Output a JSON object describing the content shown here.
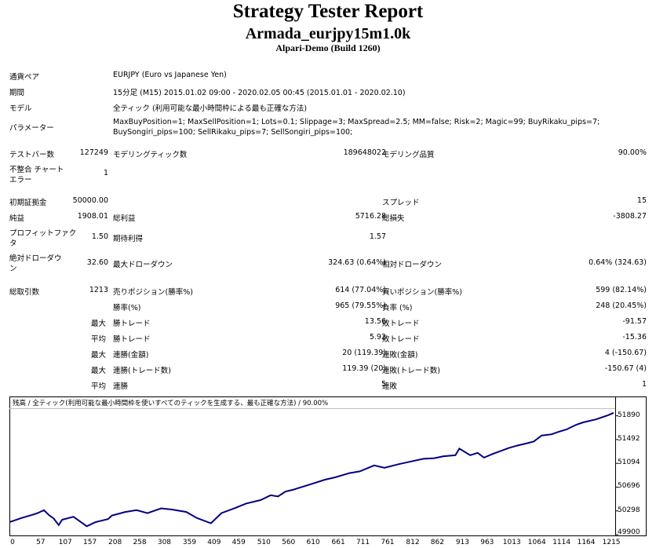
{
  "header": {
    "title": "Strategy Tester Report",
    "ea_name": "Armada_eurjpy15m1.0k",
    "server": "Alpari-Demo (Build 1260)"
  },
  "info": {
    "symbol_label": "通貨ペア",
    "symbol_value": "EURJPY (Euro vs Japanese Yen)",
    "period_label": "期間",
    "period_value": "15分足 (M15) 2015.01.02 09:00 - 2020.02.05 00:45 (2015.01.01 - 2020.02.10)",
    "model_label": "モデル",
    "model_value": "全ティック (利用可能な最小時間枠による最も正確な方法)",
    "params_label": "パラメーター",
    "params_line1": "MaxBuyPosition=1; MaxSellPosition=1; Lots=0.1; Slippage=3; MaxSpread=2.5; MM=false; Risk=2; Magic=99; BuyRikaku_pips=7;",
    "params_line2": "BuySongiri_pips=100; SellRikaku_pips=7; SellSongiri_pips=100;"
  },
  "stats": {
    "bars_label": "テストバー数",
    "bars_value": "127249",
    "ticks_label": "モデリングティック数",
    "ticks_value": "189648022",
    "quality_label": "モデリング品質",
    "quality_value": "90.00%",
    "mismatch_label_1": "不整合 チャート",
    "mismatch_label_2": "エラー",
    "mismatch_value": "1",
    "deposit_label": "初期証拠金",
    "deposit_value": "50000.00",
    "spread_label": "スプレッド",
    "spread_value": "15",
    "net_label": "純益",
    "net_value": "1908.01",
    "gross_profit_label": "総利益",
    "gross_profit_value": "5716.28",
    "gross_loss_label": "総損失",
    "gross_loss_value": "-3808.27",
    "pf_label_1": "プロフィットファク",
    "pf_label_2": "タ",
    "pf_value": "1.50",
    "expected_label": "期待利得",
    "expected_value": "1.57",
    "abs_dd_label_1": "絶対ドローダウ",
    "abs_dd_label_2": "ン",
    "abs_dd_value": "32.60",
    "max_dd_label": "最大ドローダウン",
    "max_dd_value": "324.63 (0.64%)",
    "rel_dd_label": "相対ドローダウン",
    "rel_dd_value": "0.64% (324.63)",
    "trades_label": "総取引数",
    "trades_value": "1213",
    "short_label": "売りポジション(勝率%)",
    "short_value": "614 (77.04%)",
    "long_label": "買いポジション(勝率%)",
    "long_value": "599 (82.14%)",
    "win_pct_label": "勝率(%)",
    "win_pct_value": "965 (79.55%)",
    "loss_pct_label": "負率 (%)",
    "loss_pct_value": "248 (20.45%)",
    "max_label": "最大",
    "avg_label": "平均",
    "largest_win_label": "勝トレード",
    "largest_win_value": "13.56",
    "largest_loss_label": "敗トレード",
    "largest_loss_value": "-91.57",
    "avg_win_label": "勝トレード",
    "avg_win_value": "5.92",
    "avg_loss_label": "敗トレード",
    "avg_loss_value": "-15.36",
    "max_cons_win_money_label": "連勝(金額)",
    "max_cons_win_money_value": "20 (119.39)",
    "max_cons_loss_money_label": "連敗(金額)",
    "max_cons_loss_money_value": "4 (-150.67)",
    "max_cons_profit_label": "連勝(トレード数)",
    "max_cons_profit_value": "119.39 (20)",
    "max_cons_loss_label": "連敗(トレード数)",
    "max_cons_loss_value": "-150.67 (4)",
    "avg_cons_win_label": "連勝",
    "avg_cons_win_value": "5",
    "avg_cons_loss_label": "連敗",
    "avg_cons_loss_value": "1"
  },
  "chart_data": {
    "type": "line",
    "title": "残高 / 全ティック(利用可能な最小時間枠を使いすべてのティックを生成する、最も正確な方法) / 90.00%",
    "x_ticks": [
      "0",
      "57",
      "107",
      "157",
      "208",
      "258",
      "308",
      "359",
      "409",
      "459",
      "510",
      "560",
      "610",
      "661",
      "711",
      "761",
      "812",
      "862",
      "913",
      "963",
      "1013",
      "1064",
      "1114",
      "1164",
      "1215"
    ],
    "y_ticks": [
      "51890",
      "51492",
      "51094",
      "50696",
      "50298",
      "49900"
    ],
    "ylim": [
      49900,
      51990
    ],
    "xlim": [
      0,
      1226
    ],
    "line_color": "#000080",
    "series": [
      {
        "x": [
          0,
          25,
          50,
          57,
          70,
          80,
          90,
          100,
          107,
          130,
          157,
          175,
          200,
          208,
          235,
          258,
          280,
          308,
          330,
          359,
          380,
          409,
          430,
          459,
          480,
          510,
          530,
          545,
          560,
          575,
          590,
          610,
          640,
          661,
          690,
          711,
          740,
          761,
          790,
          812,
          840,
          862,
          880,
          905,
          913,
          935,
          950,
          963,
          980,
          1000,
          1013,
          1030,
          1050,
          1064,
          1080,
          1100,
          1114,
          1130,
          1150,
          1164,
          1190,
          1215,
          1226
        ],
        "y": [
          50110,
          50180,
          50240,
          50260,
          50310,
          50230,
          50170,
          50060,
          50150,
          50200,
          50040,
          50110,
          50160,
          50220,
          50280,
          50310,
          50260,
          50340,
          50320,
          50280,
          50180,
          50090,
          50260,
          50350,
          50420,
          50480,
          50560,
          50540,
          50620,
          50650,
          50690,
          50740,
          50820,
          50860,
          50930,
          50960,
          51060,
          51020,
          51080,
          51120,
          51170,
          51180,
          51210,
          51230,
          51340,
          51230,
          51270,
          51190,
          51250,
          51310,
          51350,
          51390,
          51430,
          51460,
          51560,
          51580,
          51620,
          51660,
          51740,
          51780,
          51830,
          51900,
          51940
        ]
      }
    ]
  }
}
